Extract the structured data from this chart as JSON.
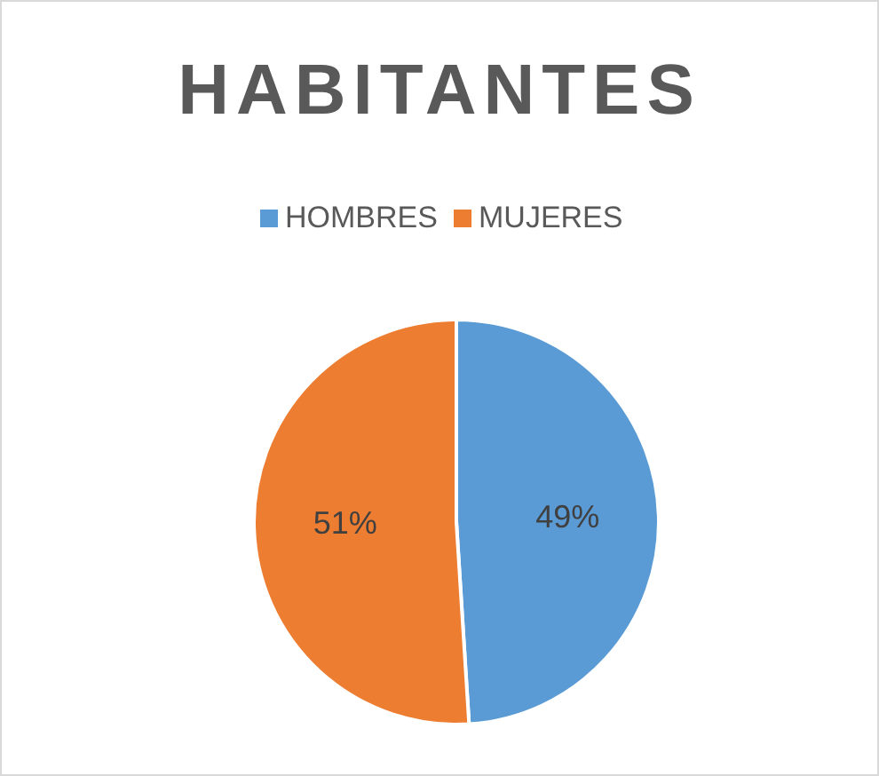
{
  "chart_data": {
    "type": "pie",
    "title": "HABITANTES",
    "categories": [
      "HOMBRES",
      "MUJERES"
    ],
    "values": [
      49,
      51
    ],
    "value_labels": [
      "49%",
      "51%"
    ],
    "colors": [
      "#5b9bd5",
      "#ed7d31"
    ],
    "legend": "top"
  }
}
